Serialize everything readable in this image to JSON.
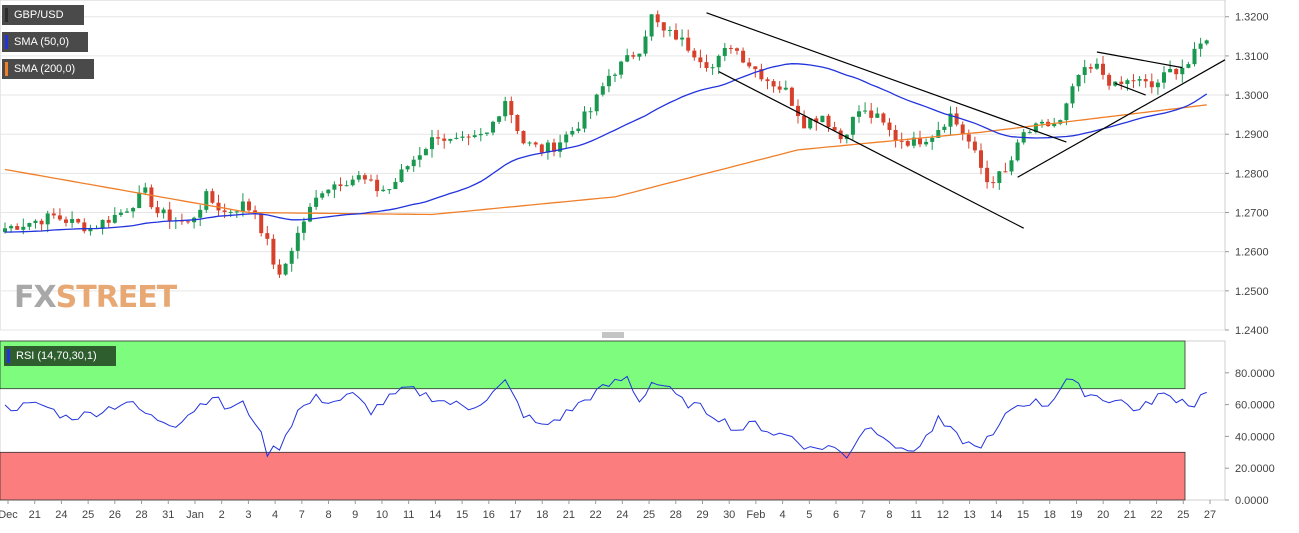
{
  "legend": {
    "pair": "GBP/USD",
    "sma50": "SMA (50,0)",
    "sma200": "SMA (200,0)",
    "rsi": "RSI (14,70,30,1)"
  },
  "watermark": {
    "fx": "FX",
    "street": "STREET"
  },
  "colors": {
    "up_candle": "#1a9850",
    "down_candle": "#d7402b",
    "sma50": "#2233dd",
    "sma200": "#f07f2a",
    "rsi_line": "#2233dd",
    "overbought_zone": "#7dfc7d",
    "oversold_zone": "#fc7d7d",
    "trendline": "#000000",
    "grid": "#e6e6e6"
  },
  "chart_data": [
    {
      "type": "candlestick",
      "title": "GBP/USD",
      "ylim": [
        1.24,
        1.323
      ],
      "y_ticks": [
        "1.3200",
        "1.3100",
        "1.3000",
        "1.2900",
        "1.2800",
        "1.2700",
        "1.2600",
        "1.2500",
        "1.2400"
      ],
      "x_ticks": [
        "Dec",
        "21",
        "24",
        "25",
        "26",
        "28",
        "31",
        "Jan",
        "2",
        "3",
        "4",
        "7",
        "8",
        "9",
        "10",
        "11",
        "14",
        "15",
        "16",
        "17",
        "18",
        "21",
        "22",
        "24",
        "25",
        "28",
        "29",
        "30",
        "Feb",
        "4",
        "5",
        "6",
        "7",
        "8",
        "11",
        "12",
        "13",
        "14",
        "15",
        "18",
        "19",
        "20",
        "21",
        "22",
        "25",
        "27"
      ],
      "grid": true,
      "legend_position": "top-left",
      "close_path": [
        [
          0,
          1.266
        ],
        [
          8,
          1.269
        ],
        [
          14,
          1.266
        ],
        [
          19,
          1.27
        ],
        [
          23,
          1.275
        ],
        [
          25,
          1.27
        ],
        [
          30,
          1.267
        ],
        [
          33,
          1.274
        ],
        [
          36,
          1.27
        ],
        [
          39,
          1.272
        ],
        [
          41,
          1.27
        ],
        [
          43,
          1.262
        ],
        [
          45,
          1.253
        ],
        [
          47,
          1.261
        ],
        [
          49,
          1.268
        ],
        [
          52,
          1.276
        ],
        [
          55,
          1.278
        ],
        [
          58,
          1.279
        ],
        [
          61,
          1.276
        ],
        [
          63,
          1.276
        ],
        [
          66,
          1.282
        ],
        [
          69,
          1.287
        ],
        [
          71,
          1.29
        ],
        [
          73,
          1.288
        ],
        [
          76,
          1.288
        ],
        [
          79,
          1.29
        ],
        [
          82,
          1.299
        ],
        [
          85,
          1.288
        ],
        [
          88,
          1.286
        ],
        [
          90,
          1.287
        ],
        [
          93,
          1.291
        ],
        [
          96,
          1.296
        ],
        [
          99,
          1.305
        ],
        [
          102,
          1.309
        ],
        [
          104,
          1.312
        ],
        [
          106,
          1.32
        ],
        [
          108,
          1.316
        ],
        [
          110,
          1.315
        ],
        [
          113,
          1.311
        ],
        [
          116,
          1.307
        ],
        [
          119,
          1.313
        ],
        [
          122,
          1.308
        ],
        [
          125,
          1.304
        ],
        [
          128,
          1.301
        ],
        [
          131,
          1.293
        ],
        [
          134,
          1.295
        ],
        [
          137,
          1.289
        ],
        [
          140,
          1.296
        ],
        [
          143,
          1.294
        ],
        [
          146,
          1.289
        ],
        [
          149,
          1.288
        ],
        [
          152,
          1.29
        ],
        [
          155,
          1.295
        ],
        [
          158,
          1.288
        ],
        [
          161,
          1.278
        ],
        [
          164,
          1.28
        ],
        [
          167,
          1.29
        ],
        [
          170,
          1.292
        ],
        [
          173,
          1.293
        ],
        [
          176,
          1.305
        ],
        [
          179,
          1.307
        ],
        [
          182,
          1.302
        ],
        [
          185,
          1.304
        ],
        [
          188,
          1.302
        ],
        [
          191,
          1.306
        ],
        [
          194,
          1.308
        ],
        [
          197,
          1.315
        ]
      ]
    },
    {
      "type": "line",
      "title": "RSI (14,70,30,1)",
      "ylim": [
        0,
        100
      ],
      "y_ticks": [
        "80.0000",
        "60.0000",
        "40.0000",
        "20.0000",
        "0.0000"
      ],
      "overbought": 70,
      "oversold": 30,
      "series": [
        {
          "name": "RSI (14,70,30,1)",
          "points": [
            [
              0,
              58
            ],
            [
              6,
              60
            ],
            [
              10,
              52
            ],
            [
              14,
              54
            ],
            [
              20,
              62
            ],
            [
              24,
              52
            ],
            [
              28,
              48
            ],
            [
              32,
              60
            ],
            [
              34,
              66
            ],
            [
              36,
              58
            ],
            [
              39,
              60
            ],
            [
              41,
              50
            ],
            [
              43,
              30
            ],
            [
              45,
              34
            ],
            [
              48,
              56
            ],
            [
              51,
              64
            ],
            [
              54,
              62
            ],
            [
              57,
              66
            ],
            [
              60,
              56
            ],
            [
              63,
              64
            ],
            [
              66,
              70
            ],
            [
              69,
              66
            ],
            [
              72,
              62
            ],
            [
              76,
              58
            ],
            [
              79,
              64
            ],
            [
              82,
              74
            ],
            [
              85,
              54
            ],
            [
              88,
              46
            ],
            [
              91,
              52
            ],
            [
              94,
              60
            ],
            [
              97,
              68
            ],
            [
              100,
              74
            ],
            [
              102,
              77
            ],
            [
              104,
              62
            ],
            [
              106,
              74
            ],
            [
              108,
              72
            ],
            [
              111,
              62
            ],
            [
              114,
              58
            ],
            [
              117,
              52
            ],
            [
              120,
              44
            ],
            [
              123,
              48
            ],
            [
              126,
              42
            ],
            [
              129,
              40
            ],
            [
              132,
              32
            ],
            [
              135,
              34
            ],
            [
              138,
              28
            ],
            [
              141,
              46
            ],
            [
              144,
              42
            ],
            [
              147,
              30
            ],
            [
              150,
              34
            ],
            [
              153,
              50
            ],
            [
              156,
              40
            ],
            [
              159,
              33
            ],
            [
              162,
              40
            ],
            [
              165,
              58
            ],
            [
              168,
              62
            ],
            [
              171,
              60
            ],
            [
              174,
              76
            ],
            [
              177,
              68
            ],
            [
              180,
              64
            ],
            [
              183,
              62
            ],
            [
              186,
              56
            ],
            [
              189,
              66
            ],
            [
              192,
              64
            ],
            [
              195,
              60
            ],
            [
              197,
              70
            ]
          ]
        }
      ]
    }
  ]
}
